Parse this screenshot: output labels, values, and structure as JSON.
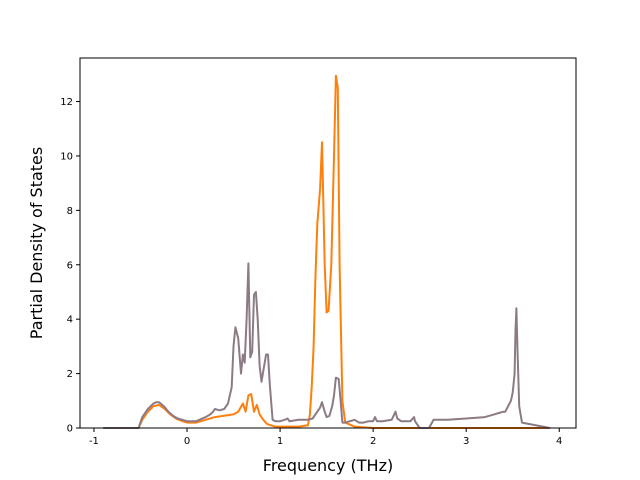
{
  "chart_data": {
    "type": "line",
    "title": "",
    "xlabel": "Frequency (THz)",
    "ylabel": "Partial Density of States",
    "xlim": [
      -1.15,
      4.18
    ],
    "ylim": [
      0,
      13.6
    ],
    "xticks": [
      -1,
      0,
      1,
      2,
      3,
      4
    ],
    "yticks": [
      0,
      2,
      4,
      6,
      8,
      10,
      12
    ],
    "grid": false,
    "legend": "none",
    "series": [
      {
        "color": "#ff7f0e",
        "x": [
          -0.9,
          -0.52,
          -0.48,
          -0.42,
          -0.36,
          -0.3,
          -0.24,
          -0.18,
          -0.12,
          -0.05,
          0.0,
          0.1,
          0.2,
          0.3,
          0.4,
          0.5,
          0.55,
          0.6,
          0.63,
          0.66,
          0.69,
          0.72,
          0.75,
          0.78,
          0.82,
          0.86,
          0.9,
          0.95,
          1.0,
          1.1,
          1.2,
          1.3,
          1.32,
          1.34,
          1.36,
          1.38,
          1.4,
          1.43,
          1.45,
          1.48,
          1.5,
          1.52,
          1.55,
          1.58,
          1.6,
          1.62,
          1.64,
          1.67,
          1.7,
          1.8,
          2.0,
          2.5,
          3.0,
          3.9
        ],
        "y": [
          0,
          0,
          0.3,
          0.6,
          0.8,
          0.85,
          0.7,
          0.5,
          0.35,
          0.25,
          0.2,
          0.2,
          0.3,
          0.4,
          0.45,
          0.5,
          0.6,
          0.9,
          0.6,
          1.2,
          1.25,
          0.6,
          0.85,
          0.5,
          0.3,
          0.15,
          0.1,
          0.05,
          0.05,
          0.05,
          0.05,
          0.1,
          0.5,
          1.5,
          3.0,
          5.5,
          7.5,
          8.8,
          10.5,
          6.0,
          4.25,
          4.3,
          6.0,
          10.0,
          12.95,
          12.5,
          6.0,
          1.0,
          0.2,
          0.05,
          0,
          0,
          0,
          0
        ]
      },
      {
        "color": "#8c7b85",
        "x": [
          -0.9,
          -0.52,
          -0.48,
          -0.42,
          -0.36,
          -0.33,
          -0.3,
          -0.25,
          -0.2,
          -0.15,
          -0.1,
          -0.05,
          0.0,
          0.1,
          0.2,
          0.25,
          0.28,
          0.3,
          0.35,
          0.4,
          0.44,
          0.48,
          0.5,
          0.52,
          0.55,
          0.58,
          0.6,
          0.62,
          0.64,
          0.66,
          0.68,
          0.7,
          0.72,
          0.74,
          0.76,
          0.78,
          0.8,
          0.82,
          0.85,
          0.87,
          0.89,
          0.92,
          0.95,
          1.0,
          1.05,
          1.08,
          1.1,
          1.2,
          1.3,
          1.35,
          1.38,
          1.4,
          1.43,
          1.45,
          1.48,
          1.5,
          1.53,
          1.56,
          1.58,
          1.6,
          1.63,
          1.65,
          1.67,
          1.7,
          1.75,
          1.8,
          1.85,
          1.9,
          1.95,
          2.0,
          2.02,
          2.04,
          2.1,
          2.2,
          2.24,
          2.26,
          2.3,
          2.4,
          2.44,
          2.45,
          2.5,
          2.6,
          2.65,
          2.68,
          2.8,
          3.0,
          3.2,
          3.3,
          3.35,
          3.4,
          3.42,
          3.45,
          3.48,
          3.5,
          3.52,
          3.53,
          3.54,
          3.55,
          3.57,
          3.6,
          3.9
        ],
        "y": [
          0,
          0,
          0.4,
          0.7,
          0.9,
          0.95,
          0.95,
          0.8,
          0.6,
          0.45,
          0.35,
          0.3,
          0.25,
          0.25,
          0.4,
          0.5,
          0.6,
          0.7,
          0.65,
          0.7,
          0.9,
          1.5,
          3.0,
          3.7,
          3.3,
          2.0,
          2.7,
          2.4,
          4.0,
          6.05,
          2.6,
          2.8,
          4.9,
          5.0,
          4.0,
          2.3,
          1.7,
          2.1,
          2.7,
          2.7,
          1.6,
          0.3,
          0.25,
          0.25,
          0.3,
          0.35,
          0.25,
          0.3,
          0.3,
          0.35,
          0.5,
          0.6,
          0.75,
          0.95,
          0.6,
          0.4,
          0.45,
          0.8,
          1.2,
          1.85,
          1.8,
          1.0,
          0.2,
          0.2,
          0.25,
          0.3,
          0.2,
          0.2,
          0.25,
          0.25,
          0.4,
          0.25,
          0.25,
          0.3,
          0.6,
          0.35,
          0.25,
          0.25,
          0.4,
          0.25,
          0.0,
          0.0,
          0.3,
          0.3,
          0.3,
          0.35,
          0.4,
          0.5,
          0.55,
          0.6,
          0.6,
          0.8,
          1.0,
          1.3,
          2.0,
          3.6,
          4.4,
          3.0,
          0.8,
          0.2,
          0
        ]
      }
    ]
  }
}
